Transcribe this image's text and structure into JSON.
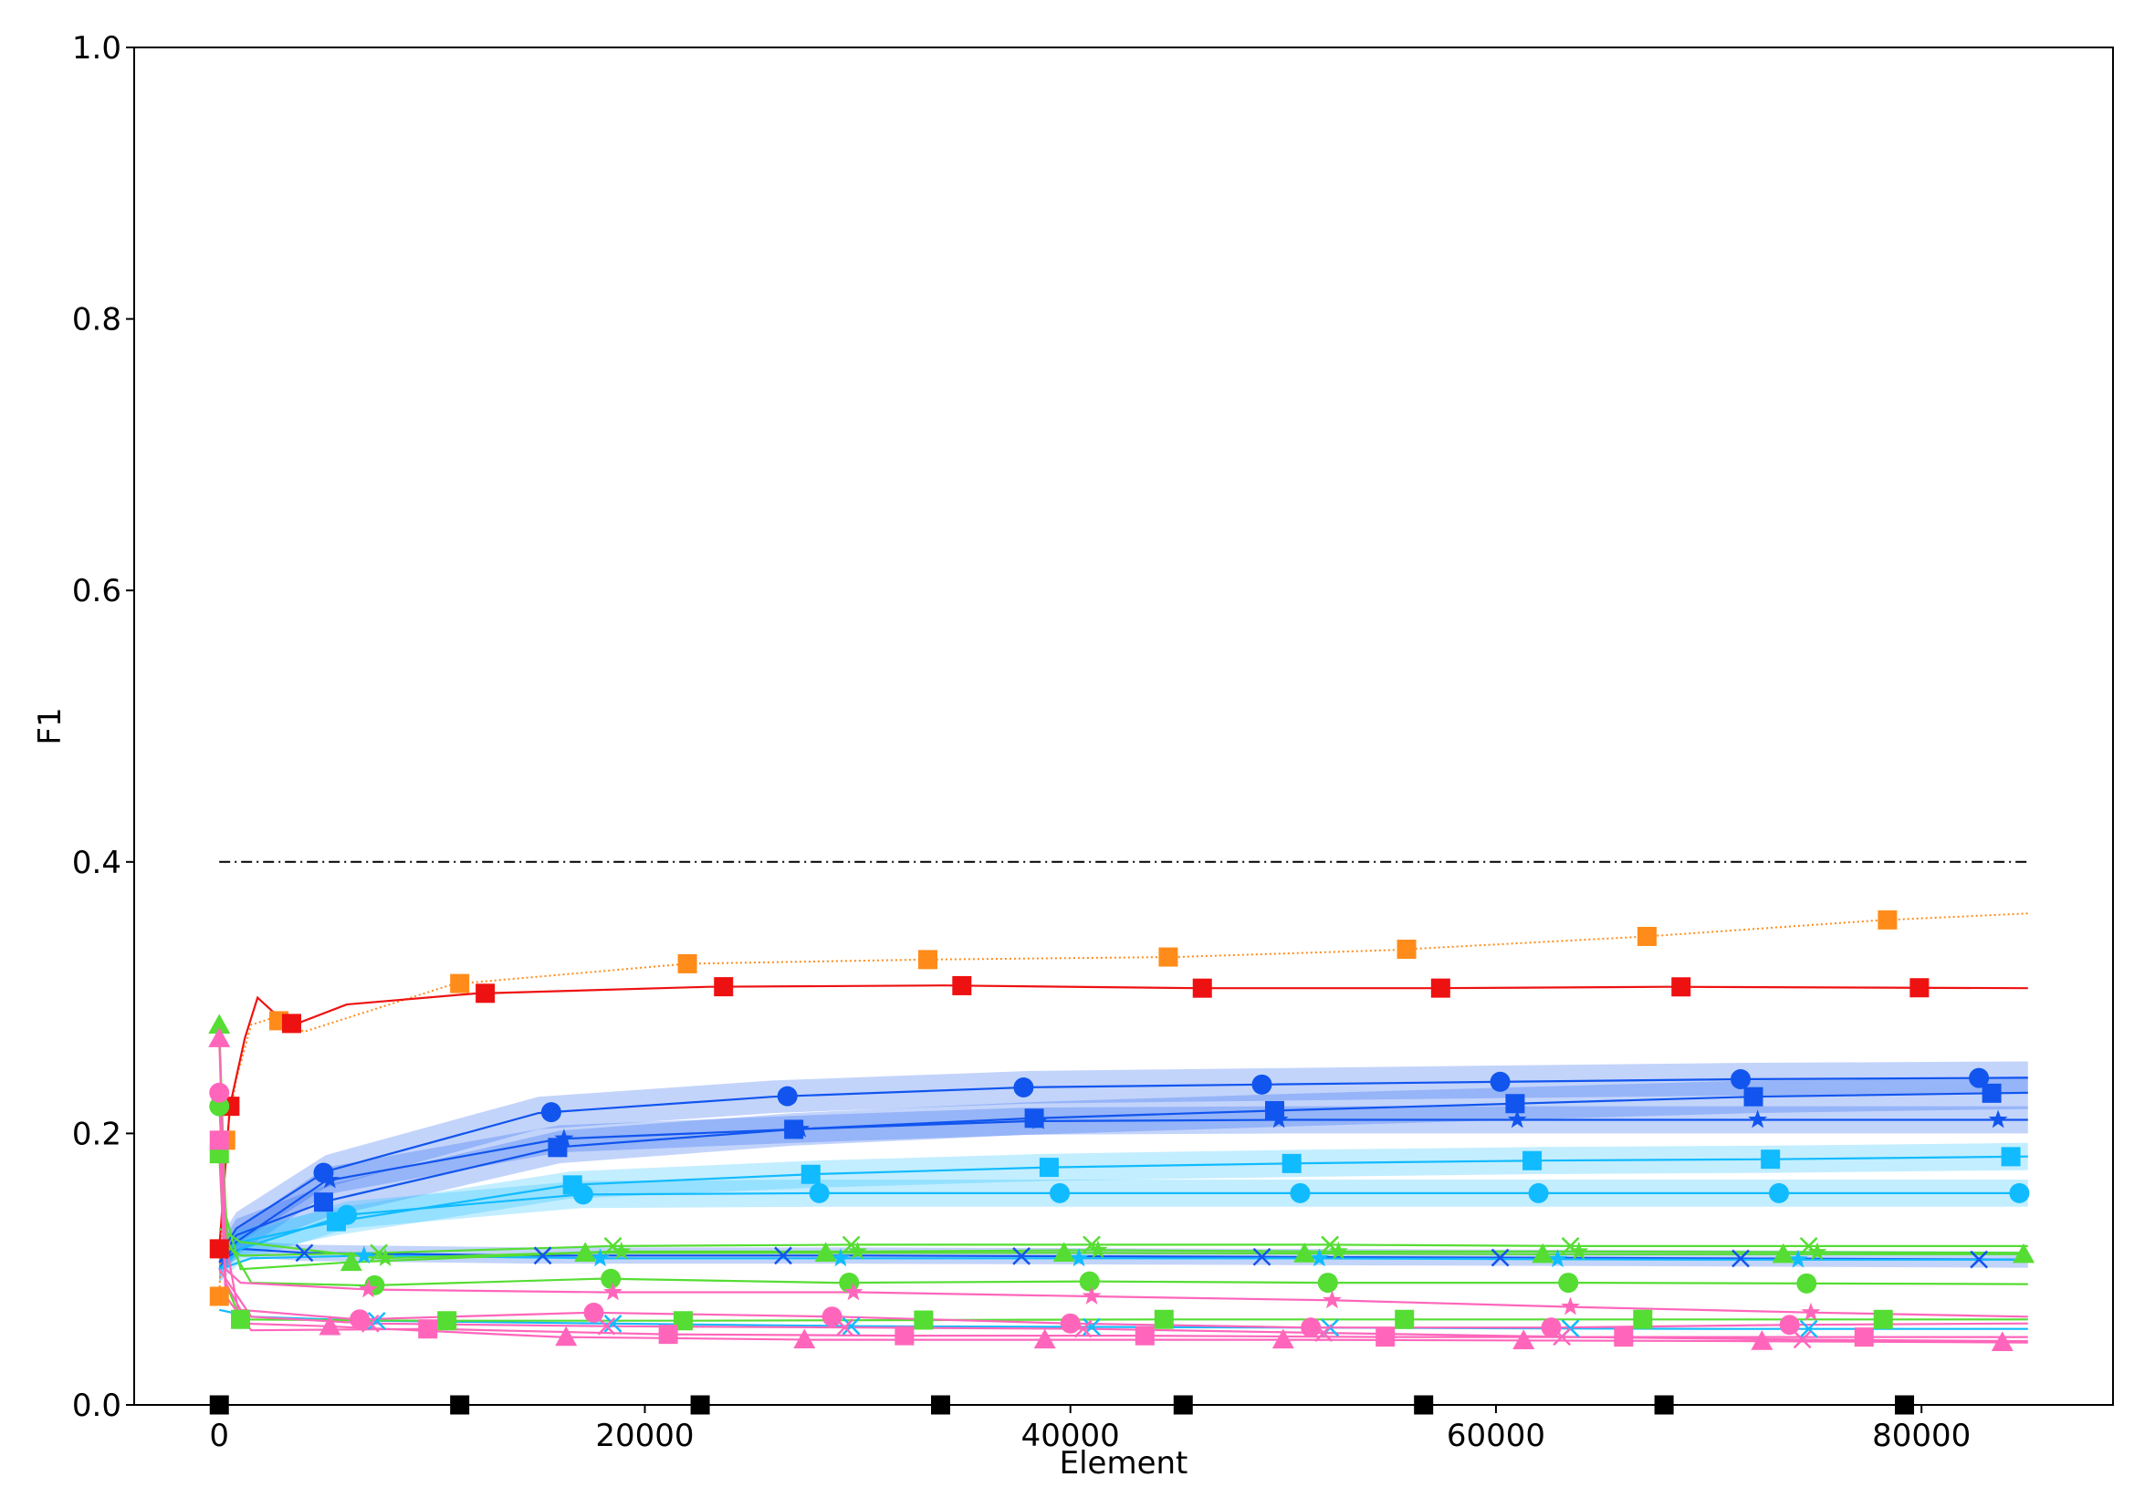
{
  "chart_data": {
    "type": "line",
    "title": "",
    "xlabel": "Element",
    "ylabel": "F1",
    "xlim": [
      -4000,
      89000
    ],
    "ylim": [
      0.0,
      1.0
    ],
    "xticks": [
      0,
      20000,
      40000,
      60000,
      80000
    ],
    "xtick_labels": [
      "0",
      "20000",
      "40000",
      "60000",
      "80000"
    ],
    "yticks": [
      0.0,
      0.2,
      0.4,
      0.6,
      0.8,
      1.0
    ],
    "ytick_labels": [
      "0.0",
      "0.2",
      "0.4",
      "0.6",
      "0.8",
      "1.0"
    ],
    "grid": false,
    "legend": "none",
    "series": [
      {
        "color": "#000000",
        "style": "dashdot",
        "marker": "none",
        "points": [
          [
            0,
            0.4
          ],
          [
            85000,
            0.4
          ]
        ]
      },
      {
        "color": "#ff8c1a",
        "style": "dotted",
        "marker": "square",
        "points": [
          [
            0,
            0.08
          ],
          [
            300,
            0.195
          ],
          [
            800,
            0.24
          ],
          [
            1500,
            0.28
          ],
          [
            2500,
            0.285
          ],
          [
            4000,
            0.275
          ],
          [
            7000,
            0.29
          ],
          [
            11000,
            0.31
          ],
          [
            22000,
            0.325
          ],
          [
            33000,
            0.328
          ],
          [
            45000,
            0.33
          ],
          [
            55000,
            0.335
          ],
          [
            67000,
            0.345
          ],
          [
            78000,
            0.357
          ],
          [
            85000,
            0.362
          ]
        ],
        "markers_x": [
          0,
          300,
          2800,
          11300,
          22000,
          33300,
          44600,
          55800,
          67100,
          78400
        ]
      },
      {
        "color": "#ee1111",
        "style": "solid",
        "marker": "square",
        "points": [
          [
            0,
            0.115
          ],
          [
            500,
            0.22
          ],
          [
            1200,
            0.27
          ],
          [
            1800,
            0.3
          ],
          [
            2500,
            0.29
          ],
          [
            3500,
            0.28
          ],
          [
            6000,
            0.295
          ],
          [
            12000,
            0.303
          ],
          [
            23000,
            0.308
          ],
          [
            34000,
            0.309
          ],
          [
            46000,
            0.307
          ],
          [
            57000,
            0.307
          ],
          [
            68000,
            0.308
          ],
          [
            85000,
            0.307
          ]
        ],
        "markers_x": [
          0,
          500,
          3400,
          12500,
          23700,
          34900,
          46200,
          57400,
          68700,
          79900
        ]
      },
      {
        "color": "#1155ee",
        "style": "solid",
        "marker": "circle",
        "band": 0.012,
        "points": [
          [
            0,
            0.11
          ],
          [
            800,
            0.13
          ],
          [
            5000,
            0.172
          ],
          [
            15000,
            0.215
          ],
          [
            26000,
            0.227
          ],
          [
            38000,
            0.234
          ],
          [
            49000,
            0.236
          ],
          [
            60000,
            0.238
          ],
          [
            72000,
            0.24
          ],
          [
            85000,
            0.241
          ]
        ],
        "markers_x": [
          4900,
          15600,
          26700,
          37800,
          49000,
          60200,
          71500,
          82700
        ]
      },
      {
        "color": "#1155ee",
        "style": "solid",
        "marker": "square",
        "band": 0.012,
        "points": [
          [
            0,
            0.105
          ],
          [
            800,
            0.125
          ],
          [
            5000,
            0.15
          ],
          [
            16000,
            0.19
          ],
          [
            27000,
            0.203
          ],
          [
            38000,
            0.211
          ],
          [
            50000,
            0.217
          ],
          [
            61000,
            0.222
          ],
          [
            72000,
            0.227
          ],
          [
            85000,
            0.23
          ]
        ],
        "markers_x": [
          4900,
          15900,
          27000,
          38300,
          49600,
          60900,
          72100,
          83300
        ]
      },
      {
        "color": "#1155ee",
        "style": "solid",
        "marker": "star",
        "band": 0.01,
        "points": [
          [
            0,
            0.1
          ],
          [
            800,
            0.12
          ],
          [
            5000,
            0.165
          ],
          [
            16000,
            0.196
          ],
          [
            27000,
            0.203
          ],
          [
            38000,
            0.209
          ],
          [
            50000,
            0.21
          ],
          [
            61000,
            0.21
          ],
          [
            72000,
            0.21
          ],
          [
            85000,
            0.21
          ]
        ],
        "markers_x": [
          5200,
          16200,
          27300,
          38500,
          49800,
          61000,
          72300,
          83600
        ]
      },
      {
        "color": "#1155ee",
        "style": "solid",
        "marker": "x",
        "band": 0.006,
        "points": [
          [
            0,
            0.105
          ],
          [
            1000,
            0.115
          ],
          [
            4000,
            0.112
          ],
          [
            15000,
            0.11
          ],
          [
            30000,
            0.11
          ],
          [
            50000,
            0.109
          ],
          [
            70000,
            0.108
          ],
          [
            85000,
            0.107
          ]
        ],
        "markers_x": [
          4000,
          15200,
          26500,
          37700,
          49000,
          60200,
          71500,
          82700
        ]
      },
      {
        "color": "#11bbff",
        "style": "solid",
        "marker": "square",
        "band": 0.01,
        "points": [
          [
            0,
            0.11
          ],
          [
            1000,
            0.12
          ],
          [
            5500,
            0.135
          ],
          [
            16500,
            0.162
          ],
          [
            28000,
            0.17
          ],
          [
            39000,
            0.175
          ],
          [
            51000,
            0.178
          ],
          [
            62000,
            0.18
          ],
          [
            73000,
            0.181
          ],
          [
            85000,
            0.183
          ]
        ],
        "markers_x": [
          5500,
          16600,
          27800,
          39000,
          50400,
          61700,
          72900,
          84200
        ]
      },
      {
        "color": "#11bbff",
        "style": "solid",
        "marker": "circle",
        "band": 0.01,
        "points": [
          [
            0,
            0.1
          ],
          [
            1000,
            0.115
          ],
          [
            6000,
            0.14
          ],
          [
            17000,
            0.155
          ],
          [
            28000,
            0.156
          ],
          [
            39000,
            0.156
          ],
          [
            51000,
            0.156
          ],
          [
            62000,
            0.156
          ],
          [
            73000,
            0.156
          ],
          [
            85000,
            0.156
          ]
        ],
        "markers_x": [
          6000,
          17100,
          28200,
          39500,
          50800,
          62000,
          73300,
          84600
        ]
      },
      {
        "color": "#11bbff",
        "style": "solid",
        "marker": "x",
        "points": [
          [
            0,
            0.07
          ],
          [
            1500,
            0.065
          ],
          [
            7000,
            0.062
          ],
          [
            18000,
            0.06
          ],
          [
            30000,
            0.058
          ],
          [
            50000,
            0.057
          ],
          [
            70000,
            0.056
          ],
          [
            85000,
            0.056
          ]
        ],
        "markers_x": [
          7400,
          18500,
          29700,
          41000,
          52200,
          63500,
          74700
        ]
      },
      {
        "color": "#11bbff",
        "style": "solid",
        "marker": "star",
        "points": [
          [
            0,
            0.1
          ],
          [
            1500,
            0.108
          ],
          [
            7000,
            0.11
          ],
          [
            18000,
            0.108
          ],
          [
            30000,
            0.108
          ],
          [
            50000,
            0.108
          ],
          [
            70000,
            0.107
          ],
          [
            85000,
            0.107
          ]
        ],
        "markers_x": [
          6800,
          17900,
          29200,
          40400,
          51700,
          62900,
          74200
        ]
      },
      {
        "color": "#55dd33",
        "style": "solid",
        "marker": "triangle",
        "points": [
          [
            0,
            0.28
          ],
          [
            300,
            0.14
          ],
          [
            1000,
            0.1
          ],
          [
            6000,
            0.105
          ],
          [
            17000,
            0.112
          ],
          [
            28000,
            0.112
          ],
          [
            40000,
            0.112
          ],
          [
            62000,
            0.111
          ],
          [
            85000,
            0.111
          ]
        ],
        "markers_x": [
          0,
          6200,
          17200,
          28500,
          39700,
          51000,
          62200,
          73500,
          84800
        ]
      },
      {
        "color": "#55dd33",
        "style": "solid",
        "marker": "x",
        "points": [
          [
            0,
            0.12
          ],
          [
            1000,
            0.11
          ],
          [
            7500,
            0.112
          ],
          [
            18500,
            0.117
          ],
          [
            30000,
            0.118
          ],
          [
            41000,
            0.118
          ],
          [
            52000,
            0.118
          ],
          [
            64000,
            0.117
          ],
          [
            85000,
            0.117
          ]
        ],
        "markers_x": [
          7500,
          18500,
          29700,
          41000,
          52200,
          63500,
          74700
        ]
      },
      {
        "color": "#55dd33",
        "style": "solid",
        "marker": "star",
        "points": [
          [
            0,
            0.13
          ],
          [
            1000,
            0.12
          ],
          [
            7500,
            0.108
          ],
          [
            18500,
            0.113
          ],
          [
            30000,
            0.113
          ],
          [
            41000,
            0.114
          ],
          [
            53000,
            0.113
          ],
          [
            64000,
            0.113
          ],
          [
            85000,
            0.112
          ]
        ],
        "markers_x": [
          7800,
          18900,
          30000,
          41300,
          52600,
          63900,
          75100
        ]
      },
      {
        "color": "#55dd33",
        "style": "solid",
        "marker": "circle",
        "points": [
          [
            0,
            0.22
          ],
          [
            400,
            0.12
          ],
          [
            1500,
            0.09
          ],
          [
            7000,
            0.088
          ],
          [
            18000,
            0.093
          ],
          [
            29000,
            0.09
          ],
          [
            41000,
            0.091
          ],
          [
            52000,
            0.09
          ],
          [
            64000,
            0.09
          ],
          [
            85000,
            0.089
          ]
        ],
        "markers_x": [
          0,
          7300,
          18400,
          29600,
          40900,
          52100,
          63400,
          74600
        ]
      },
      {
        "color": "#55dd33",
        "style": "solid",
        "marker": "square",
        "points": [
          [
            0,
            0.185
          ],
          [
            300,
            0.09
          ],
          [
            1000,
            0.063
          ],
          [
            10000,
            0.062
          ],
          [
            22000,
            0.062
          ],
          [
            44000,
            0.063
          ],
          [
            66000,
            0.063
          ],
          [
            85000,
            0.063
          ]
        ],
        "markers_x": [
          0,
          1000,
          10700,
          21800,
          33100,
          44400,
          55700,
          66900,
          78200
        ]
      },
      {
        "color": "#ff66bb",
        "style": "solid",
        "marker": "triangle",
        "points": [
          [
            0,
            0.27
          ],
          [
            300,
            0.12
          ],
          [
            1000,
            0.06
          ],
          [
            5000,
            0.058
          ],
          [
            16000,
            0.05
          ],
          [
            28000,
            0.048
          ],
          [
            50000,
            0.048
          ],
          [
            72000,
            0.047
          ],
          [
            85000,
            0.046
          ]
        ],
        "markers_x": [
          0,
          5200,
          16300,
          27500,
          38800,
          50000,
          61300,
          72500,
          83800
        ]
      },
      {
        "color": "#ff66bb",
        "style": "solid",
        "marker": "circle",
        "points": [
          [
            0,
            0.23
          ],
          [
            300,
            0.09
          ],
          [
            1000,
            0.07
          ],
          [
            6500,
            0.063
          ],
          [
            17500,
            0.068
          ],
          [
            29000,
            0.065
          ],
          [
            40000,
            0.06
          ],
          [
            51000,
            0.057
          ],
          [
            63000,
            0.057
          ],
          [
            74000,
            0.059
          ],
          [
            85000,
            0.06
          ]
        ],
        "markers_x": [
          0,
          6600,
          17600,
          28800,
          40000,
          51300,
          62600,
          73800
        ]
      },
      {
        "color": "#ff66bb",
        "style": "solid",
        "marker": "star",
        "points": [
          [
            0,
            0.2
          ],
          [
            300,
            0.1
          ],
          [
            1000,
            0.09
          ],
          [
            7000,
            0.085
          ],
          [
            18000,
            0.083
          ],
          [
            30000,
            0.083
          ],
          [
            41000,
            0.08
          ],
          [
            52500,
            0.077
          ],
          [
            64000,
            0.072
          ],
          [
            75000,
            0.068
          ],
          [
            85000,
            0.065
          ]
        ],
        "markers_x": [
          7000,
          18500,
          29800,
          41000,
          52300,
          63500,
          74800
        ]
      },
      {
        "color": "#ff66bb",
        "style": "solid",
        "marker": "square",
        "points": [
          [
            0,
            0.195
          ],
          [
            300,
            0.08
          ],
          [
            1500,
            0.055
          ],
          [
            10000,
            0.056
          ],
          [
            21000,
            0.052
          ],
          [
            32000,
            0.051
          ],
          [
            43000,
            0.051
          ],
          [
            55000,
            0.05
          ],
          [
            66000,
            0.05
          ],
          [
            85000,
            0.05
          ]
        ],
        "markers_x": [
          0,
          9800,
          21100,
          32200,
          43500,
          54800,
          66000,
          77300
        ]
      },
      {
        "color": "#ff66bb",
        "style": "solid",
        "marker": "x",
        "points": [
          [
            0,
            0.1
          ],
          [
            1500,
            0.065
          ],
          [
            7000,
            0.06
          ],
          [
            18000,
            0.058
          ],
          [
            30000,
            0.057
          ],
          [
            41000,
            0.056
          ],
          [
            52000,
            0.053
          ],
          [
            64000,
            0.05
          ],
          [
            75000,
            0.048
          ],
          [
            85000,
            0.047
          ]
        ],
        "markers_x": [
          7100,
          18200,
          29400,
          40600,
          51900,
          63100,
          74400
        ]
      },
      {
        "color": "#000000",
        "style": "none",
        "marker": "square",
        "points": [],
        "markers_x": [
          0,
          11300,
          22600,
          33900,
          45300,
          56600,
          67900,
          79200
        ],
        "markers_y": 0.0
      }
    ]
  }
}
